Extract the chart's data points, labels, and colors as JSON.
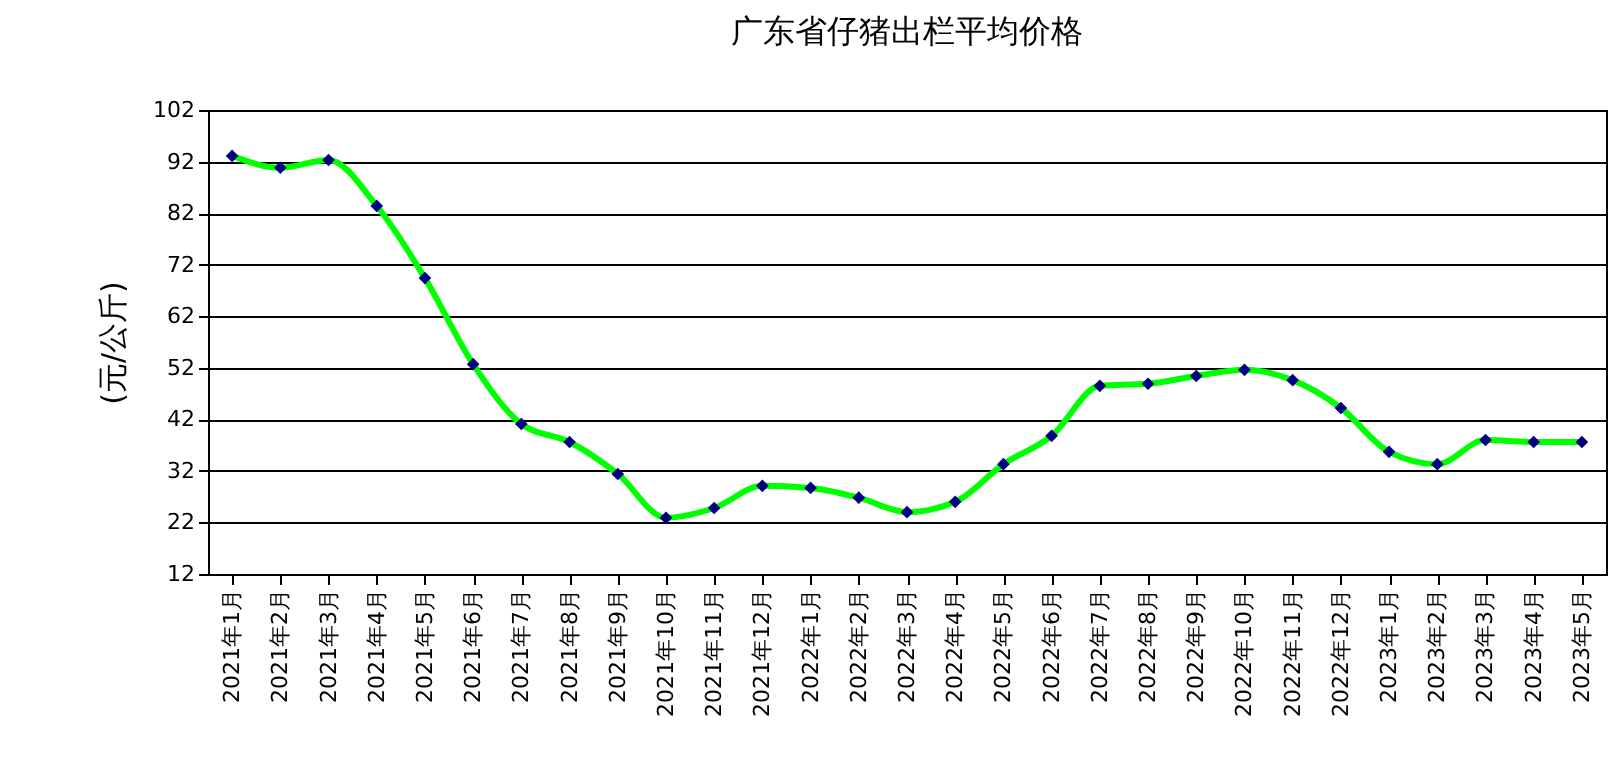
{
  "chart_data": {
    "type": "line",
    "title": "广东省仔猪出栏平均价格",
    "ylabel": "(元/公斤)",
    "categories": [
      "2021年1月",
      "2021年2月",
      "2021年3月",
      "2021年4月",
      "2021年5月",
      "2021年6月",
      "2021年7月",
      "2021年8月",
      "2021年9月",
      "2021年10月",
      "2021年11月",
      "2021年12月",
      "2022年1月",
      "2022年2月",
      "2022年3月",
      "2022年4月",
      "2022年5月",
      "2022年6月",
      "2022年7月",
      "2022年8月",
      "2022年9月",
      "2022年10月",
      "2022年11月",
      "2022年12月",
      "2023年1月",
      "2023年2月",
      "2023年3月",
      "2023年4月",
      "2023年5月"
    ],
    "series": [
      {
        "color": "#00ff00",
        "values": [
          93.1,
          90.8,
          92.3,
          83.4,
          69.4,
          52.7,
          41.1,
          37.6,
          31.4,
          22.9,
          24.8,
          29.1,
          28.7,
          26.8,
          24.0,
          26.0,
          33.3,
          38.8,
          48.5,
          48.9,
          50.4,
          51.6,
          49.6,
          44.2,
          35.7,
          33.3,
          38.0,
          37.6,
          37.6
        ]
      }
    ],
    "ylim": [
      12,
      102
    ],
    "yticks": [
      12,
      22,
      32,
      42,
      52,
      62,
      72,
      82,
      92,
      102
    ],
    "grid": "y",
    "marker": "diamond",
    "legend": false
  }
}
